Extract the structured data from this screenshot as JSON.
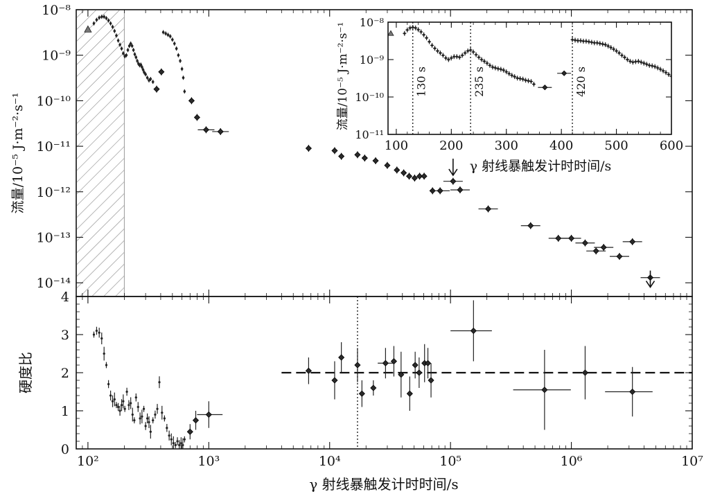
{
  "chart_data": [
    {
      "type": "scatter",
      "panel": "top",
      "xlabel": "γ 射线暴触发计时时间/s",
      "ylabel": "流量/10⁻⁵ J·m⁻²·s⁻¹",
      "xscale": "log",
      "yscale": "log",
      "xlim": [
        80,
        10000000
      ],
      "ylim": [
        5e-15,
        1e-08
      ],
      "x_tick_labels": [
        "10²",
        "10³",
        "10⁴",
        "10⁵",
        "10⁶",
        "10⁷"
      ],
      "y_tick_labels": [
        "10⁻⁸",
        "10⁻⁹",
        "10⁻¹⁰",
        "10⁻¹¹",
        "10⁻¹²",
        "10⁻¹³",
        "10⁻¹⁴"
      ],
      "shaded_region_x": [
        80,
        200
      ],
      "triangle_point": {
        "x": 100,
        "y": 3.7e-09
      },
      "series": [
        {
          "style": "small-dots",
          "x": [
            112,
            118,
            124,
            130,
            136,
            142,
            148,
            154,
            160,
            166,
            172,
            178,
            184,
            190,
            196,
            202,
            208,
            214,
            220,
            226,
            232,
            238,
            244,
            250,
            256,
            262,
            268,
            274,
            280,
            286,
            292,
            300,
            310,
            320,
            330,
            345
          ],
          "y": [
            5e-09,
            6e-09,
            6.7e-09,
            7e-09,
            7e-09,
            6.5e-09,
            5.8e-09,
            5e-09,
            4.2e-09,
            3.4e-09,
            2.7e-09,
            2.1e-09,
            1.7e-09,
            1.4e-09,
            1.1e-09,
            9.5e-10,
            1e-09,
            1.3e-09,
            1.6e-09,
            1.8e-09,
            1.6e-09,
            1.3e-09,
            1.05e-09,
            9e-10,
            7.5e-10,
            6.5e-10,
            6e-10,
            6.2e-10,
            5.5e-10,
            4.8e-10,
            4.2e-10,
            3.8e-10,
            3.2e-10,
            2.8e-10,
            3e-10,
            2.6e-10
          ]
        },
        {
          "style": "small-dots",
          "x": [
            420,
            440,
            460,
            480,
            500,
            520,
            540,
            560,
            580,
            600,
            615,
            630
          ],
          "y": [
            3.2e-09,
            3e-09,
            2.8e-09,
            2.6e-09,
            2.2e-09,
            1.8e-09,
            1.4e-09,
            1e-09,
            7.5e-10,
            5e-10,
            3.2e-10,
            1.6e-10
          ]
        },
        {
          "style": "diamonds",
          "x": [
            370,
            405,
            720,
            800,
            950,
            1250,
            6700,
            11000,
            12500,
            17000,
            19500,
            24000,
            30000,
            36000,
            41000,
            45500,
            50500,
            55500,
            60500,
            71000,
            82000,
            105000,
            120000,
            205000,
            460000,
            780000,
            1000000,
            1300000,
            1600000,
            1850000,
            2500000,
            3200000,
            4500000
          ],
          "y": [
            1.8e-10,
            4.3e-10,
            1e-10,
            4.3e-11,
            2.3e-11,
            2.1e-11,
            9e-12,
            8e-12,
            6e-12,
            6.5e-12,
            5.5e-12,
            4.8e-12,
            3.8e-12,
            3e-12,
            2.6e-12,
            2.2e-12,
            2e-12,
            2.2e-12,
            2.2e-12,
            1.05e-12,
            1.05e-12,
            1.7e-12,
            1.1e-12,
            4.2e-13,
            1.8e-13,
            9.5e-14,
            9.5e-14,
            7.5e-14,
            5e-14,
            6e-14,
            3.8e-14,
            8e-14,
            1.3e-14
          ]
        }
      ],
      "upper_limits": [
        {
          "x": 105000,
          "y": 2.3e-12
        },
        {
          "x": 4500000,
          "y": 8e-15
        }
      ]
    },
    {
      "type": "scatter",
      "panel": "inset",
      "xlabel": "γ 射线暴触发计时时间/s",
      "ylabel": "流量/10⁻⁵ J·m⁻²·s⁻¹",
      "yscale": "log",
      "xlim": [
        85,
        600
      ],
      "ylim": [
        1e-11,
        1e-08
      ],
      "x_tick_labels": [
        "100",
        "200",
        "300",
        "400",
        "500",
        "600"
      ],
      "y_tick_labels": [
        "10⁻⁸",
        "10⁻⁹",
        "10⁻¹⁰",
        "10⁻¹¹"
      ],
      "vlines": [
        {
          "x": 130,
          "label": "130 s"
        },
        {
          "x": 235,
          "label": "235 s"
        },
        {
          "x": 420,
          "label": "420 s"
        }
      ],
      "triangle_point": {
        "x": 90,
        "y": 5e-09
      },
      "series": [
        {
          "style": "crosses",
          "x": [
            115,
            120,
            125,
            130,
            135,
            140,
            145,
            150,
            155,
            160,
            165,
            170,
            175,
            180,
            185,
            190,
            195,
            200,
            205,
            210,
            215,
            220,
            225,
            230,
            235,
            240,
            245,
            250,
            255,
            260,
            265,
            270,
            275,
            280,
            285,
            290,
            295,
            300,
            305,
            310,
            315,
            320,
            325,
            330,
            335,
            340,
            345,
            350
          ],
          "y": [
            5e-09,
            6.2e-09,
            7e-09,
            7.3e-09,
            7e-09,
            6.3e-09,
            5.5e-09,
            4.6e-09,
            3.8e-09,
            3e-09,
            2.4e-09,
            2e-09,
            1.7e-09,
            1.5e-09,
            1.3e-09,
            1.1e-09,
            1e-09,
            1.1e-09,
            1.2e-09,
            1.2e-09,
            1.15e-09,
            1.3e-09,
            1.5e-09,
            1.7e-09,
            1.8e-09,
            1.6e-09,
            1.35e-09,
            1.15e-09,
            1e-09,
            9e-10,
            8e-10,
            7e-10,
            6.3e-10,
            6e-10,
            5.7e-10,
            5.5e-10,
            5.2e-10,
            4.7e-10,
            4.2e-10,
            3.8e-10,
            3.5e-10,
            3.2e-10,
            3.1e-10,
            3e-10,
            2.8e-10,
            2.7e-10,
            2.6e-10,
            2.2e-10
          ]
        },
        {
          "style": "crosses",
          "x": [
            420,
            425,
            430,
            435,
            440,
            445,
            450,
            455,
            460,
            465,
            470,
            475,
            480,
            485,
            490,
            495,
            500,
            505,
            510,
            515,
            520,
            525,
            530,
            535,
            540,
            545,
            550,
            555,
            560,
            565,
            570,
            575,
            580,
            585,
            590,
            595,
            600
          ],
          "y": [
            3.4e-09,
            3.3e-09,
            3.2e-09,
            3.2e-09,
            3.1e-09,
            3.1e-09,
            3e-09,
            2.9e-09,
            2.8e-09,
            2.8e-09,
            2.7e-09,
            2.6e-09,
            2.5e-09,
            2.3e-09,
            2.1e-09,
            1.9e-09,
            1.7e-09,
            1.5e-09,
            1.3e-09,
            1.15e-09,
            1e-09,
            9e-10,
            8.5e-10,
            8.8e-10,
            9e-10,
            8.5e-10,
            8e-10,
            7.5e-10,
            7e-10,
            6.8e-10,
            6.5e-10,
            6e-10,
            5.5e-10,
            5e-10,
            4.5e-10,
            4e-10,
            3.6e-10
          ]
        },
        {
          "style": "diamonds",
          "x": [
            370,
            405
          ],
          "y": [
            1.8e-10,
            4.3e-10
          ]
        }
      ]
    },
    {
      "type": "scatter",
      "panel": "bottom",
      "xlabel": "γ 射线暴触发计时时间/s",
      "ylabel": "硬度比",
      "xscale": "log",
      "xlim": [
        80,
        10000000
      ],
      "ylim": [
        0,
        4
      ],
      "x_tick_labels": [
        "10²",
        "10³",
        "10⁴",
        "10⁵",
        "10⁶",
        "10⁷"
      ],
      "y_tick_labels": [
        "0",
        "1",
        "2",
        "3",
        "4"
      ],
      "hline_y": 2,
      "vline_x": 17000,
      "series": [
        {
          "style": "crosses",
          "x": [
            112,
            118,
            124,
            130,
            136,
            142,
            148,
            154,
            160,
            166,
            172,
            178,
            184,
            190,
            196,
            202,
            210,
            218,
            226,
            234,
            242,
            250,
            260,
            270,
            280,
            290,
            300,
            310,
            320,
            330,
            345,
            360,
            375,
            390,
            410,
            430,
            450,
            470,
            490,
            510,
            530,
            550,
            570,
            590,
            610,
            630
          ],
          "y": [
            3,
            3.1,
            3.05,
            2.9,
            2.5,
            2.2,
            1.7,
            1.4,
            1.25,
            1.3,
            1.15,
            1.1,
            1,
            1.15,
            1.25,
            1.05,
            1.5,
            1.15,
            1.2,
            0.9,
            0.75,
            1.35,
            1.1,
            0.8,
            0.85,
            1.05,
            0.6,
            0.8,
            0.7,
            0.45,
            0.75,
            0.9,
            1.05,
            1.75,
            0.95,
            0.8,
            0.55,
            0.35,
            0.25,
            0.15,
            0.1,
            0.2,
            0.1,
            0.15,
            0.1,
            0.25
          ]
        },
        {
          "style": "diamonds",
          "x": [
            700,
            780,
            1000,
            6700,
            11000,
            12500,
            17000,
            18500,
            23000,
            29000,
            34000,
            39000,
            46000,
            51000,
            55000,
            61000,
            65000,
            69000,
            155000,
            600000,
            1300000,
            3200000
          ],
          "y": [
            0.45,
            0.75,
            0.9,
            2.05,
            1.8,
            2.4,
            2.2,
            1.45,
            1.6,
            2.25,
            2.3,
            1.95,
            1.45,
            2.2,
            2,
            2.25,
            2.25,
            1.8,
            3.1,
            1.55,
            2,
            1.5
          ],
          "xerr": [
            [
              0,
              0
            ],
            [
              0,
              0
            ],
            [
              200,
              300
            ],
            [
              0,
              0
            ],
            [
              0,
              0
            ],
            [
              0,
              0
            ],
            [
              0,
              0
            ],
            [
              0,
              0
            ],
            [
              0,
              0
            ],
            [
              4000,
              5000
            ],
            [
              0,
              0
            ],
            [
              0,
              0
            ],
            [
              0,
              0
            ],
            [
              0,
              0
            ],
            [
              0,
              0
            ],
            [
              0,
              0
            ],
            [
              0,
              0
            ],
            [
              0,
              0
            ],
            [
              55000,
              65000
            ],
            [
              270000,
              390000
            ],
            [
              0,
              0
            ],
            [
              1300000,
              1500000
            ]
          ],
          "yerr": [
            0.2,
            0.25,
            0.35,
            0.35,
            0.5,
            0.4,
            0.45,
            0.35,
            0.2,
            0.4,
            0.4,
            0.6,
            0.45,
            0.35,
            0.4,
            0.5,
            0.4,
            0.45,
            0.8,
            1.05,
            0.7,
            0.65
          ]
        }
      ]
    }
  ]
}
